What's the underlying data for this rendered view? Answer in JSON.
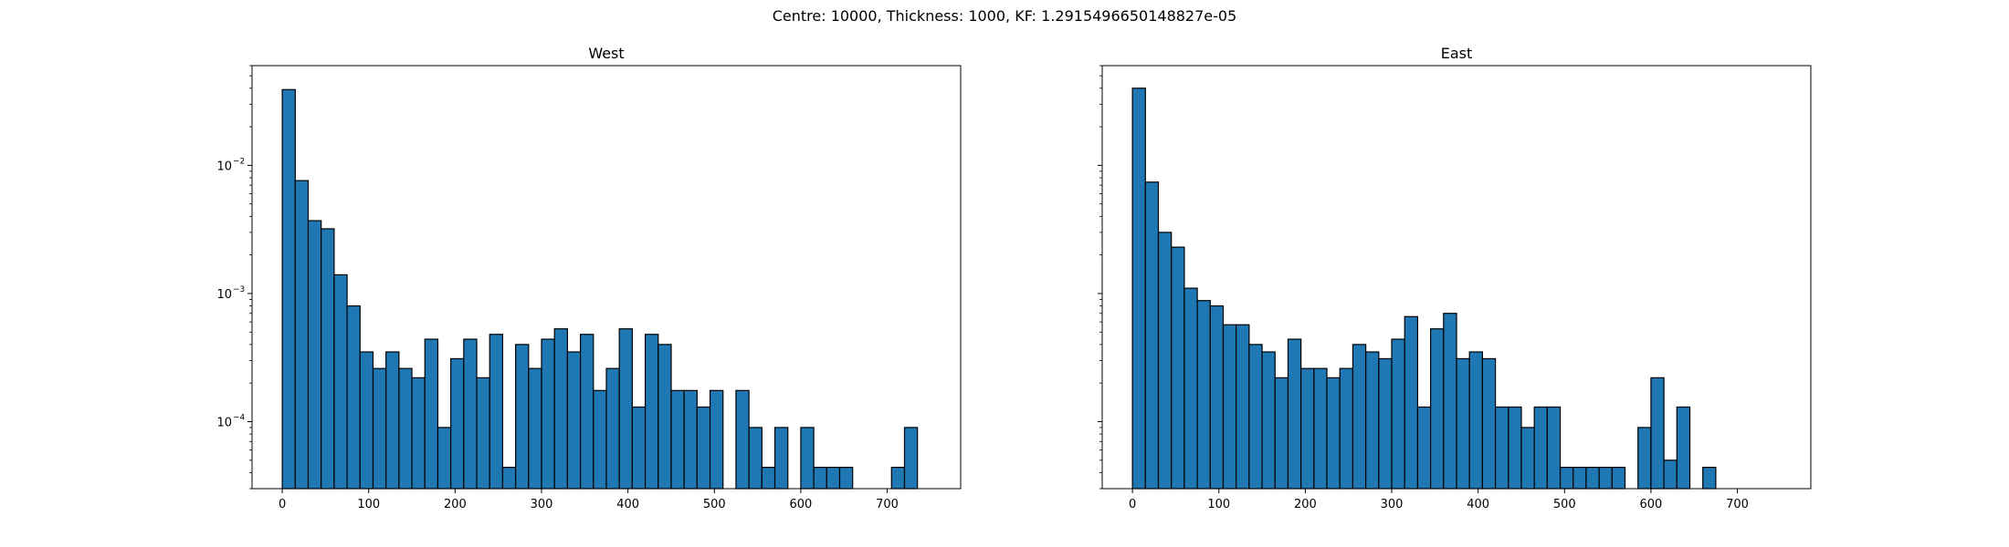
{
  "figure": {
    "suptitle": "Centre: 10000, Thickness: 1000, KF: 1.2915496650148827e-05"
  },
  "chart_data": [
    {
      "type": "bar",
      "title": "West",
      "xlabel": "",
      "ylabel": "",
      "yscale": "log",
      "xlim": [
        -35,
        785
      ],
      "ylim": [
        3e-05,
        0.06
      ],
      "xticks": [
        0,
        100,
        200,
        300,
        400,
        500,
        600,
        700
      ],
      "yticks": [
        0.0001,
        0.001,
        0.01
      ],
      "ytick_labels": [
        {
          "base": "10",
          "exp": "−4"
        },
        {
          "base": "10",
          "exp": "−3"
        },
        {
          "base": "10",
          "exp": "−2"
        }
      ],
      "bin_width": 15,
      "bin_start": 0,
      "values": [
        0.039,
        0.0076,
        0.0037,
        0.0032,
        0.0014,
        0.0008,
        0.00035,
        0.00026,
        0.00035,
        0.00026,
        0.00022,
        0.00044,
        9e-05,
        0.00031,
        0.00044,
        0.00022,
        0.00048,
        4.4e-05,
        0.0004,
        0.00026,
        0.00044,
        0.00053,
        0.00035,
        0.00048,
        0.000175,
        0.00026,
        0.00053,
        0.00013,
        0.00048,
        0.0004,
        0.000175,
        0.000175,
        0.00013,
        0.000175,
        0,
        0.000175,
        9e-05,
        4.4e-05,
        9e-05,
        0,
        9e-05,
        4.4e-05,
        4.4e-05,
        4.4e-05,
        0,
        0,
        0,
        4.4e-05,
        9e-05
      ],
      "bar_color": "#1f77b4",
      "edge_color": "#000000"
    },
    {
      "type": "bar",
      "title": "East",
      "xlabel": "",
      "ylabel": "",
      "yscale": "log",
      "xlim": [
        -35,
        785
      ],
      "ylim": [
        3e-05,
        0.06
      ],
      "xticks": [
        0,
        100,
        200,
        300,
        400,
        500,
        600,
        700
      ],
      "yticks": [
        0.0001,
        0.001,
        0.01
      ],
      "bin_width": 15,
      "bin_start": 0,
      "values": [
        0.04,
        0.0074,
        0.003,
        0.0023,
        0.0011,
        0.00088,
        0.0008,
        0.00057,
        0.00057,
        0.0004,
        0.00035,
        0.00022,
        0.00044,
        0.00026,
        0.00026,
        0.00022,
        0.00026,
        0.0004,
        0.00035,
        0.00031,
        0.00044,
        0.00066,
        0.00013,
        0.00053,
        0.0007,
        0.00031,
        0.00035,
        0.00031,
        0.00013,
        0.00013,
        9e-05,
        0.00013,
        0.00013,
        4.4e-05,
        4.4e-05,
        4.4e-05,
        4.4e-05,
        4.4e-05,
        0,
        9e-05,
        0.00022,
        5e-05,
        0.00013,
        0,
        4.4e-05,
        0,
        0,
        0,
        0
      ],
      "bar_color": "#1f77b4",
      "edge_color": "#000000"
    }
  ]
}
